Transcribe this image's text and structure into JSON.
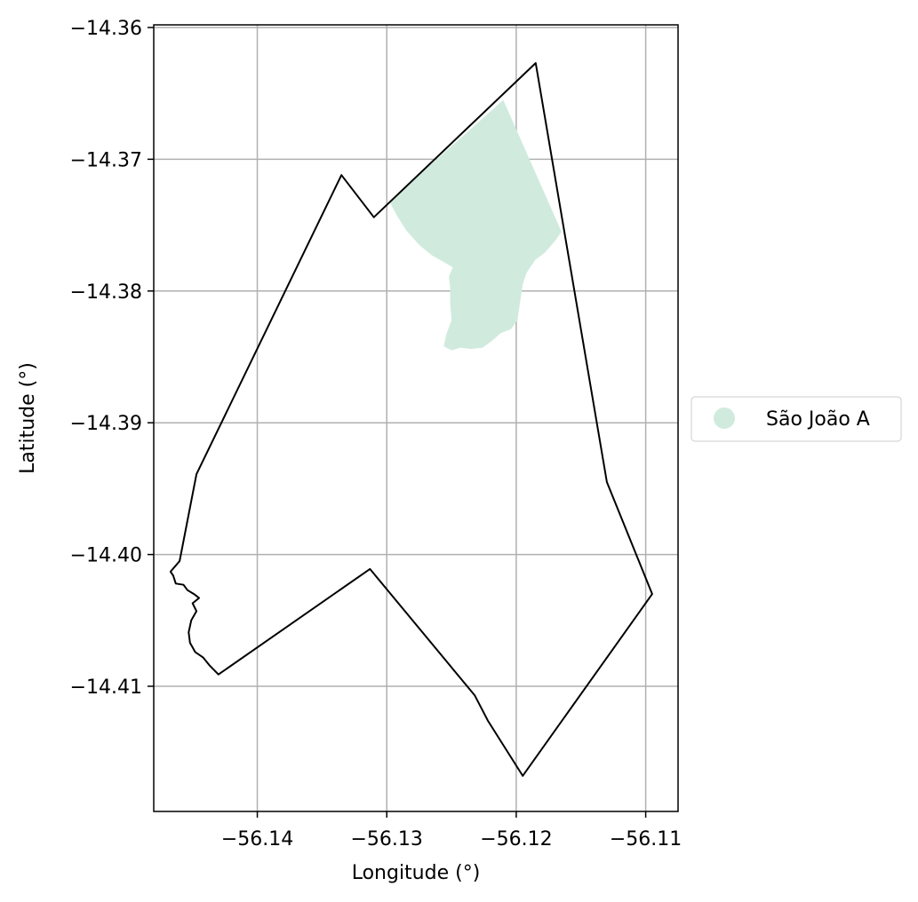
{
  "chart_data": {
    "type": "map",
    "xlabel": "Longitude (°)",
    "ylabel": "Latitude (°)",
    "xlim": [
      -56.148,
      -56.1075
    ],
    "ylim": [
      -14.4195,
      -14.3598
    ],
    "x_ticks": [
      -56.14,
      -56.13,
      -56.12,
      -56.11
    ],
    "x_tick_labels": [
      "−56.14",
      "−56.13",
      "−56.12",
      "−56.11"
    ],
    "y_ticks": [
      -14.36,
      -14.37,
      -14.38,
      -14.39,
      -14.4,
      -14.41
    ],
    "y_tick_labels": [
      "−14.36",
      "−14.37",
      "−14.38",
      "−14.39",
      "−14.40",
      "−14.41"
    ],
    "grid": true,
    "legend_placement": "right-center",
    "boundary": {
      "stroke_color": "#000000",
      "coordinates": [
        [
          -56.1185,
          -14.3627
        ],
        [
          -56.113,
          -14.3945
        ],
        [
          -56.1095,
          -14.403
        ],
        [
          -56.1195,
          -14.4168
        ],
        [
          -56.1222,
          -14.4126
        ],
        [
          -56.1232,
          -14.4107
        ],
        [
          -56.1313,
          -14.4011
        ],
        [
          -56.143,
          -14.4091
        ],
        [
          -56.1437,
          -14.4084
        ],
        [
          -56.1442,
          -14.4078
        ],
        [
          -56.1448,
          -14.4074
        ],
        [
          -56.1452,
          -14.4067
        ],
        [
          -56.1453,
          -14.4059
        ],
        [
          -56.1451,
          -14.405
        ],
        [
          -56.1447,
          -14.4043
        ],
        [
          -56.145,
          -14.4037
        ],
        [
          -56.1445,
          -14.4033
        ],
        [
          -56.1449,
          -14.403
        ],
        [
          -56.1454,
          -14.4027
        ],
        [
          -56.1457,
          -14.4023
        ],
        [
          -56.1463,
          -14.4022
        ],
        [
          -56.1465,
          -14.4016
        ],
        [
          -56.1467,
          -14.4013
        ],
        [
          -56.146,
          -14.4005
        ],
        [
          -56.1447,
          -14.3939
        ],
        [
          -56.1335,
          -14.3712
        ],
        [
          -56.131,
          -14.3744
        ],
        [
          -56.1185,
          -14.3627
        ]
      ]
    },
    "regions": [
      {
        "name": "São João A",
        "color": "#d0ebde",
        "coordinates": [
          [
            -56.1298,
            -14.3732
          ],
          [
            -56.121,
            -14.3655
          ],
          [
            -56.1165,
            -14.3755
          ],
          [
            -56.117,
            -14.3762
          ],
          [
            -56.1178,
            -14.3771
          ],
          [
            -56.1185,
            -14.3776
          ],
          [
            -56.1192,
            -14.3786
          ],
          [
            -56.1195,
            -14.3795
          ],
          [
            -56.1197,
            -14.3808
          ],
          [
            -56.1199,
            -14.3822
          ],
          [
            -56.1204,
            -14.3829
          ],
          [
            -56.1212,
            -14.3832
          ],
          [
            -56.1219,
            -14.3838
          ],
          [
            -56.1226,
            -14.3843
          ],
          [
            -56.1235,
            -14.3844
          ],
          [
            -56.1243,
            -14.3843
          ],
          [
            -56.125,
            -14.3845
          ],
          [
            -56.1256,
            -14.3842
          ],
          [
            -56.1254,
            -14.3833
          ],
          [
            -56.125,
            -14.3822
          ],
          [
            -56.1251,
            -14.381
          ],
          [
            -56.1251,
            -14.3798
          ],
          [
            -56.1252,
            -14.3789
          ],
          [
            -56.1249,
            -14.3782
          ],
          [
            -56.1256,
            -14.3778
          ],
          [
            -56.1265,
            -14.3773
          ],
          [
            -56.1275,
            -14.3765
          ],
          [
            -56.1285,
            -14.3754
          ],
          [
            -56.1292,
            -14.3743
          ],
          [
            -56.1298,
            -14.3732
          ]
        ]
      }
    ]
  }
}
